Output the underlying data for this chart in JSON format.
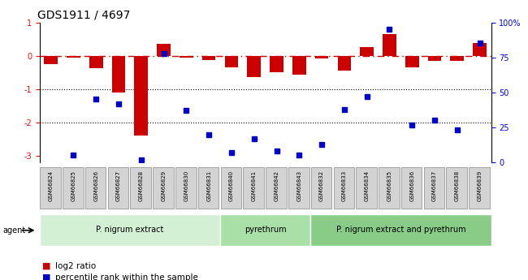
{
  "title": "GDS1911 / 4697",
  "samples": [
    "GSM66824",
    "GSM66825",
    "GSM66826",
    "GSM66827",
    "GSM66828",
    "GSM66829",
    "GSM66830",
    "GSM66831",
    "GSM66840",
    "GSM66841",
    "GSM66842",
    "GSM66843",
    "GSM66832",
    "GSM66833",
    "GSM66834",
    "GSM66835",
    "GSM66836",
    "GSM66837",
    "GSM66838",
    "GSM66839"
  ],
  "log2_ratio": [
    -0.25,
    -0.05,
    -0.38,
    -1.1,
    -2.4,
    0.35,
    -0.05,
    -0.12,
    -0.35,
    -0.65,
    -0.5,
    -0.58,
    -0.07,
    -0.45,
    0.25,
    0.65,
    -0.35,
    -0.15,
    -0.15,
    0.38
  ],
  "percentile_rank": [
    null,
    5,
    45,
    42,
    2,
    78,
    37,
    20,
    7,
    17,
    8,
    5,
    13,
    38,
    47,
    95,
    27,
    30,
    23,
    85
  ],
  "groups": [
    {
      "label": "P. nigrum extract",
      "start": 0,
      "end": 8,
      "color": "#d4f0d4"
    },
    {
      "label": "pyrethrum",
      "start": 8,
      "end": 12,
      "color": "#a8e0a8"
    },
    {
      "label": "P. nigrum extract and pyrethrum",
      "start": 12,
      "end": 20,
      "color": "#88cc88"
    }
  ],
  "bar_color": "#cc0000",
  "dot_color": "#0000cc",
  "ylim_left": [
    -3.2,
    1.0
  ],
  "ylim_right": [
    0,
    100
  ],
  "left_ticks": [
    1,
    0,
    -1,
    -2,
    -3
  ],
  "right_ticks": [
    0,
    25,
    50,
    75,
    100
  ],
  "right_tick_labels": [
    "0",
    "25",
    "50",
    "75",
    "100%"
  ]
}
